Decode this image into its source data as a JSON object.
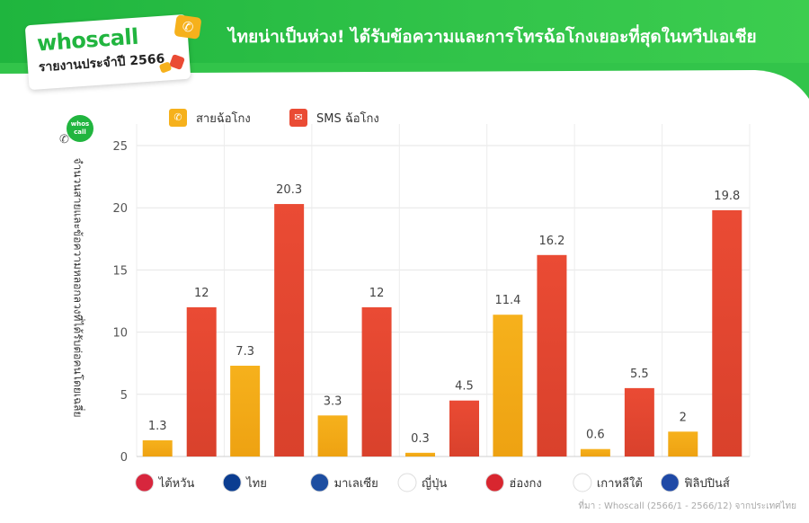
{
  "header": {
    "logo_word": "whoscall",
    "logo_subtitle": "รายงานประจำปี 2566",
    "headline": "ไทยน่าเป็นห่วง! ได้รับข้อความและการโทรฉ้อโกงเยอะที่สุดในทวีปเอเชีย",
    "badge_text": "whos call"
  },
  "colors": {
    "green": "#21b53f",
    "calls": "#f6b11c",
    "sms": "#ea4b34"
  },
  "source": "ที่มา : Whoscall (2566/1 - 2566/12) จากประเทศไทย",
  "chart_data": {
    "type": "bar",
    "ylabel": "จำนวนสายและข้อความหลอกลวงที่ได้รับต่อคนโดยเฉลี่ย",
    "ylim": [
      0,
      25
    ],
    "yticks": [
      0,
      5,
      10,
      15,
      20,
      25
    ],
    "grid": true,
    "legend_position": "top",
    "categories": [
      "ไต้หวัน",
      "ไทย",
      "มาเลเซีย",
      "ญี่ปุ่น",
      "ฮ่องกง",
      "เกาหลีใต้",
      "ฟิลิปปินส์"
    ],
    "series": [
      {
        "name": "สายฉ้อโกง",
        "values": [
          1.3,
          7.3,
          3.3,
          0.3,
          11.4,
          0.6,
          2
        ],
        "labels": [
          "1.3",
          "7.3",
          "3.3",
          "0.3",
          "11.4",
          "0.6",
          "2"
        ]
      },
      {
        "name": "SMS ฉ้อโกง",
        "values": [
          12,
          20.3,
          12,
          4.5,
          16.2,
          5.5,
          19.8
        ],
        "labels": [
          "12",
          "20.3",
          "12",
          "4.5",
          "16.2",
          "5.5",
          "19.8"
        ]
      }
    ]
  }
}
